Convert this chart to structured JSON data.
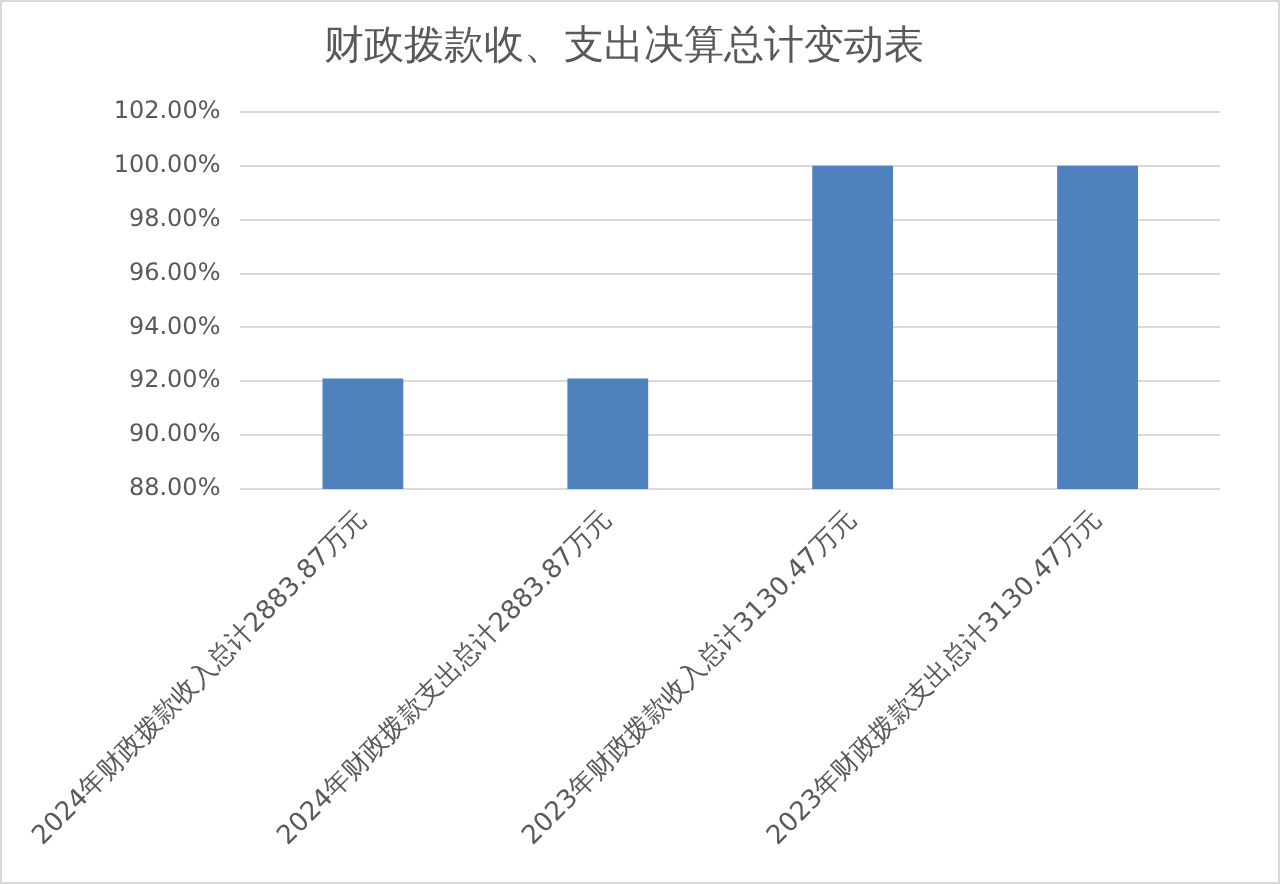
{
  "chart_data": {
    "type": "bar",
    "title": "财政拨款收、支出决算总计变动表",
    "categories": [
      "2024年财政拨款收入总计2883.87万元",
      "2024年财政拨款支出总计2883.87万元",
      "2023年财政拨款收入总计3130.47万元",
      "2023年财政拨款支出总计3130.47万元"
    ],
    "values": [
      92.1,
      92.1,
      100,
      100
    ],
    "color": "#4f81bd",
    "ylim": [
      88,
      102
    ],
    "yticks": [
      {
        "value": 88,
        "label": "88.00%"
      },
      {
        "value": 90,
        "label": "90.00%"
      },
      {
        "value": 92,
        "label": "92.00%"
      },
      {
        "value": 94,
        "label": "94.00%"
      },
      {
        "value": 96,
        "label": "96.00%"
      },
      {
        "value": 98,
        "label": "98.00%"
      },
      {
        "value": 100,
        "label": "100.00%"
      },
      {
        "value": 102,
        "label": "102.00%"
      }
    ],
    "grid": "y",
    "legend": false
  }
}
